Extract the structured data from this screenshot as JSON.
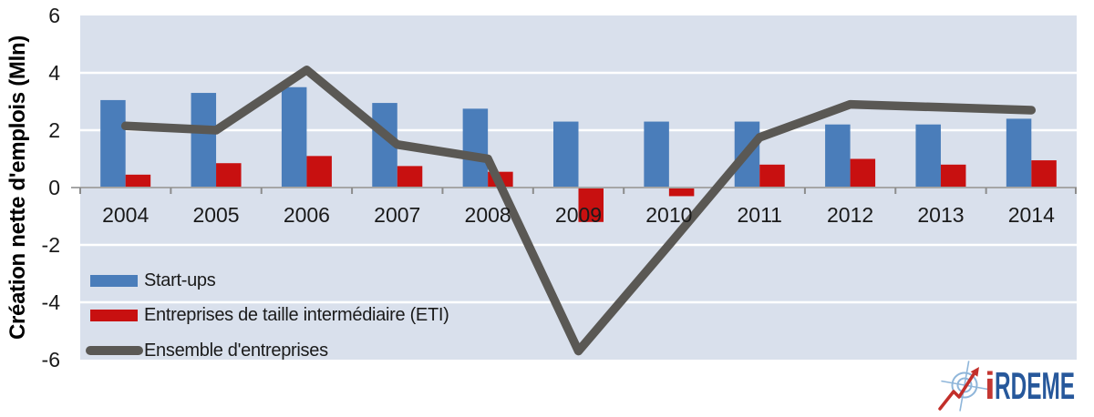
{
  "chart_data": {
    "type": "bar",
    "subtype": "bar-and-line-combo",
    "title": "",
    "xlabel": "",
    "ylabel": "Création nette d'emplois (Mln)",
    "categories": [
      "2004",
      "2005",
      "2006",
      "2007",
      "2008",
      "2009",
      "2010",
      "2011",
      "2012",
      "2013",
      "2014"
    ],
    "series": [
      {
        "name": "Start-ups",
        "type": "bar",
        "color": "#4A7DBA",
        "values": [
          3.05,
          3.3,
          3.5,
          2.95,
          2.75,
          2.3,
          2.3,
          2.3,
          2.2,
          2.2,
          2.4
        ]
      },
      {
        "name": "Entreprises de taille intermédiaire (ETI)",
        "type": "bar",
        "color": "#C81010",
        "values": [
          0.45,
          0.85,
          1.1,
          0.75,
          0.55,
          -1.2,
          -0.3,
          0.8,
          1.0,
          0.8,
          0.95
        ]
      },
      {
        "name": "Ensemble d'entreprises",
        "type": "line",
        "color": "#5A5854",
        "values": [
          2.15,
          2.0,
          4.1,
          1.5,
          1.0,
          -5.7,
          -2.0,
          1.75,
          2.9,
          2.8,
          2.7
        ]
      }
    ],
    "ylim": [
      -6,
      6
    ],
    "yticks": [
      6,
      4,
      2,
      0,
      -2,
      -4,
      -6
    ],
    "gridlines": [
      4,
      2,
      -2,
      -4
    ],
    "grid": "horizontal",
    "legend_position": "inside-bottom-left",
    "plot_bg": "#D9E0EC",
    "gridline_color": "#FFFFFF",
    "axis_color": "#A6A6A6",
    "tick_color": "#8C8C8C",
    "text_color": "#1A1A1A"
  },
  "logo": {
    "text_i": "i",
    "text_rest": "RDEME",
    "i_color": "#C43732",
    "text_color": "#27589B",
    "icon": "compass-scope-icon",
    "icon_color": "#8FB6DA",
    "arrow_color": "#C22F2A"
  }
}
